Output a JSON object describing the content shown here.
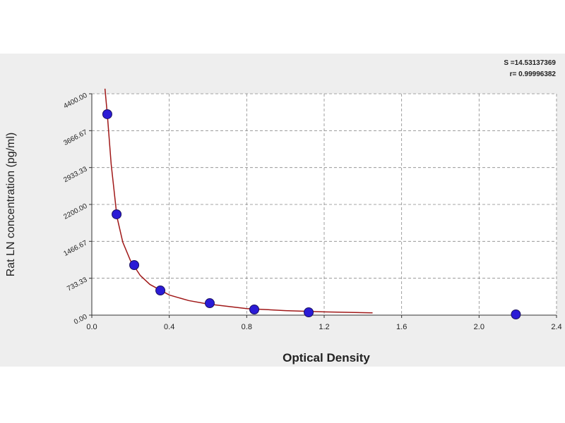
{
  "chart_data": {
    "type": "scatter",
    "x_label": "Optical Density",
    "y_label": "Rat LN concentration (pg/ml)",
    "annotations": [
      "S =14.53137369",
      "r= 0.99996382"
    ],
    "xlim": [
      0,
      2.4
    ],
    "xticks": [
      {
        "value": 0,
        "label": "0.0"
      },
      0.4,
      0.8,
      1.2,
      1.6,
      {
        "value": 2,
        "label": "2.0"
      },
      2.4
    ],
    "ylim": [
      0,
      4400
    ],
    "yticks": [
      {
        "value": 0,
        "label": "0.00"
      },
      733.33,
      1466.67,
      {
        "value": 2200,
        "label": "2200.00"
      },
      2933.33,
      3666.67,
      {
        "value": 4400,
        "label": "4400.00"
      }
    ],
    "grid": true,
    "points": {
      "color": "#2b1bd6",
      "x": [
        0.08,
        0.128,
        0.219,
        0.354,
        0.609,
        0.839,
        1.12,
        2.19
      ],
      "y": [
        3994,
        2004,
        995,
        490,
        238,
        112,
        56,
        14
      ]
    },
    "curve": {
      "color": "#a01818",
      "x": [
        0.068,
        0.08,
        0.1,
        0.13,
        0.16,
        0.2,
        0.25,
        0.3,
        0.4,
        0.5,
        0.6,
        0.8,
        1.0,
        1.2,
        1.45
      ],
      "y": [
        4500,
        3994,
        3000,
        1950,
        1450,
        1080,
        790,
        610,
        400,
        290,
        220,
        130,
        90,
        65,
        45
      ]
    }
  }
}
